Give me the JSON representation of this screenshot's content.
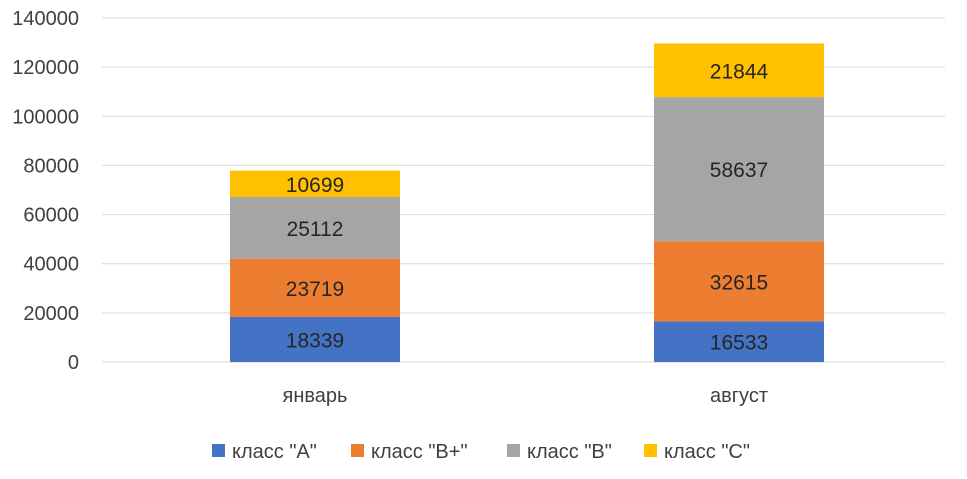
{
  "chart_data": {
    "type": "bar",
    "stacked": true,
    "categories": [
      "январь",
      "август"
    ],
    "series": [
      {
        "name": "класс \"A\"",
        "values": [
          18339,
          16533
        ],
        "color": "#4472C4"
      },
      {
        "name": "класс \"B+\"",
        "values": [
          23719,
          32615
        ],
        "color": "#ED7D31"
      },
      {
        "name": "класс \"B\"",
        "values": [
          25112,
          58637
        ],
        "color": "#A5A5A5"
      },
      {
        "name": "класс \"C\"",
        "values": [
          10699,
          21844
        ],
        "color": "#FFC000"
      }
    ],
    "ylim": [
      0,
      140000
    ],
    "yticks": [
      0,
      20000,
      40000,
      60000,
      80000,
      100000,
      120000,
      140000
    ],
    "grid": true,
    "legend": "bottom",
    "data_labels": true,
    "gridline_color": "#D9D9D9"
  }
}
